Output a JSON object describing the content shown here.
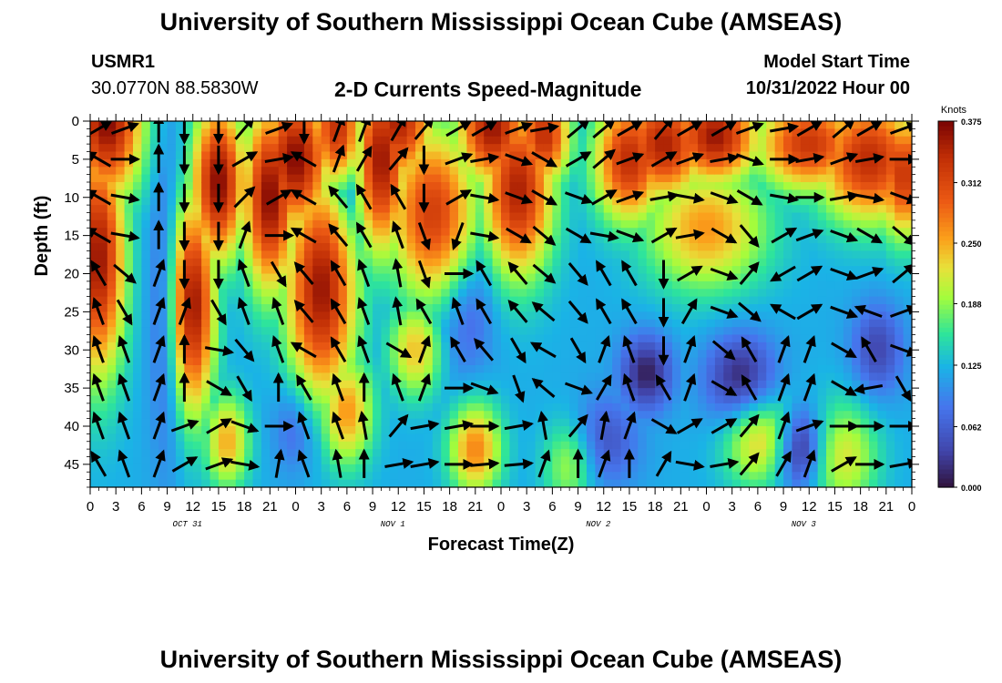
{
  "header": {
    "title": "University of Southern Mississippi Ocean Cube (AMSEAS)",
    "station_id": "USMR1",
    "station_coords": "30.0770N  88.5830W",
    "plot_title": "2-D Currents Speed-Magnitude",
    "model_start_label": "Model Start Time",
    "model_start_value": "10/31/2022 Hour 00"
  },
  "footer": {
    "title": "University of Southern Mississippi Ocean Cube (AMSEAS)"
  },
  "chart_data": {
    "type": "heatmap",
    "title": "2-D Currents Speed-Magnitude",
    "xlabel": "Forecast Time(Z)",
    "ylabel": "Depth (ft)",
    "xlim": [
      0,
      96
    ],
    "ylim": [
      0,
      48
    ],
    "y_inverted": true,
    "x_ticks": [
      0,
      3,
      6,
      9,
      12,
      15,
      18,
      21,
      24,
      27,
      30,
      33,
      36,
      39,
      42,
      45,
      48,
      51,
      54,
      57,
      60,
      63,
      66,
      69,
      72,
      75,
      78,
      81,
      84,
      87,
      90,
      93,
      96
    ],
    "x_tick_labels": [
      "0",
      "3",
      "6",
      "9",
      "12",
      "15",
      "18",
      "21",
      "0",
      "3",
      "6",
      "9",
      "12",
      "15",
      "18",
      "21",
      "0",
      "3",
      "6",
      "9",
      "12",
      "15",
      "18",
      "21",
      "0",
      "3",
      "6",
      "9",
      "12",
      "15",
      "18",
      "21",
      "0"
    ],
    "y_ticks": [
      0,
      5,
      10,
      15,
      20,
      25,
      30,
      35,
      40,
      45
    ],
    "y_tick_labels": [
      "0",
      "5",
      "10",
      "15",
      "20",
      "25",
      "30",
      "35",
      "40",
      "45"
    ],
    "day_labels": [
      {
        "hour": 12,
        "label": "OCT 31"
      },
      {
        "hour": 36,
        "label": "NOV 1"
      },
      {
        "hour": 60,
        "label": "NOV 2"
      },
      {
        "hour": 84,
        "label": "NOV 3"
      }
    ],
    "colorbar": {
      "unit": "Knots",
      "range": [
        0.0,
        0.375
      ],
      "tick_values": [
        0.375,
        0.312,
        0.25,
        0.188,
        0.125,
        0.062,
        0.0
      ],
      "tick_labels": [
        "0.375",
        "0.312",
        "0.250",
        "0.188",
        "0.125",
        "0.062",
        "0.000"
      ]
    },
    "speed_features": [
      {
        "t": 1,
        "d": 18,
        "speed": 0.36,
        "sx": 3,
        "sd": 15
      },
      {
        "t": 2,
        "d": 0,
        "speed": 0.37,
        "sx": 4,
        "sd": 10
      },
      {
        "t": 12,
        "d": 24,
        "speed": 0.36,
        "sx": 2.5,
        "sd": 14
      },
      {
        "t": 15,
        "d": 8,
        "speed": 0.37,
        "sx": 3,
        "sd": 10
      },
      {
        "t": 16,
        "d": 42,
        "speed": 0.25,
        "sx": 2.5,
        "sd": 6
      },
      {
        "t": 21,
        "d": 10,
        "speed": 0.37,
        "sx": 3,
        "sd": 12
      },
      {
        "t": 24,
        "d": 5,
        "speed": 0.37,
        "sx": 4,
        "sd": 9
      },
      {
        "t": 27,
        "d": 22,
        "speed": 0.36,
        "sx": 4,
        "sd": 14
      },
      {
        "t": 29,
        "d": 1,
        "speed": 0.35,
        "sx": 3,
        "sd": 8
      },
      {
        "t": 30,
        "d": 38,
        "speed": 0.26,
        "sx": 3,
        "sd": 7
      },
      {
        "t": 34,
        "d": 5,
        "speed": 0.36,
        "sx": 3,
        "sd": 12
      },
      {
        "t": 36,
        "d": 0,
        "speed": 0.35,
        "sx": 4,
        "sd": 8
      },
      {
        "t": 38,
        "d": 30,
        "speed": 0.24,
        "sx": 3,
        "sd": 6
      },
      {
        "t": 40,
        "d": 12,
        "speed": 0.32,
        "sx": 5,
        "sd": 11
      },
      {
        "t": 45,
        "d": 43,
        "speed": 0.27,
        "sx": 3,
        "sd": 6
      },
      {
        "t": 47,
        "d": 1,
        "speed": 0.36,
        "sx": 4,
        "sd": 7
      },
      {
        "t": 50,
        "d": 9,
        "speed": 0.35,
        "sx": 4,
        "sd": 11
      },
      {
        "t": 53,
        "d": 2,
        "speed": 0.34,
        "sx": 3,
        "sd": 6
      },
      {
        "t": 56,
        "d": 45,
        "speed": 0.2,
        "sx": 3,
        "sd": 6
      },
      {
        "t": 63,
        "d": 5,
        "speed": 0.34,
        "sx": 4,
        "sd": 8
      },
      {
        "t": 67,
        "d": 3,
        "speed": 0.35,
        "sx": 5,
        "sd": 7
      },
      {
        "t": 72,
        "d": 14,
        "speed": 0.26,
        "sx": 7,
        "sd": 8
      },
      {
        "t": 73,
        "d": 2,
        "speed": 0.36,
        "sx": 5,
        "sd": 6
      },
      {
        "t": 78,
        "d": 42,
        "speed": 0.23,
        "sx": 4,
        "sd": 6
      },
      {
        "t": 84,
        "d": 3,
        "speed": 0.33,
        "sx": 6,
        "sd": 6
      },
      {
        "t": 91,
        "d": 5,
        "speed": 0.34,
        "sx": 6,
        "sd": 8
      },
      {
        "t": 95,
        "d": 7,
        "speed": 0.33,
        "sx": 3,
        "sd": 8
      },
      {
        "t": 88,
        "d": 44,
        "speed": 0.22,
        "sx": 4,
        "sd": 7
      }
    ],
    "low_speed_features": [
      {
        "t": 9,
        "d": 25,
        "speed": 0.06,
        "sx": 2,
        "sd": 20
      },
      {
        "t": 24,
        "d": 40,
        "speed": 0.06,
        "sx": 2.5,
        "sd": 6
      },
      {
        "t": 30,
        "d": 5,
        "speed": 0.06,
        "sx": 2,
        "sd": 10
      },
      {
        "t": 44,
        "d": 25,
        "speed": 0.06,
        "sx": 3,
        "sd": 8
      },
      {
        "t": 60,
        "d": 42,
        "speed": 0.05,
        "sx": 4,
        "sd": 6
      },
      {
        "t": 65,
        "d": 33,
        "speed": 0.01,
        "sx": 3,
        "sd": 5
      },
      {
        "t": 76,
        "d": 34,
        "speed": 0.01,
        "sx": 4,
        "sd": 6
      },
      {
        "t": 83,
        "d": 43,
        "speed": 0.01,
        "sx": 3,
        "sd": 5
      },
      {
        "t": 92,
        "d": 30,
        "speed": 0.04,
        "sx": 3,
        "sd": 6
      }
    ],
    "background_speed": 0.12,
    "vectors": {
      "times": [
        1,
        4,
        8,
        11,
        15,
        18,
        22,
        25,
        29,
        32,
        36,
        39,
        43,
        46,
        50,
        53,
        57,
        60,
        63,
        67,
        70,
        74,
        77,
        81,
        84,
        88,
        91,
        95
      ],
      "depths": [
        1,
        5,
        10,
        15,
        20,
        25,
        30,
        35,
        40,
        45
      ],
      "directions_deg": [
        [
          60,
          70,
          0,
          180,
          180,
          40,
          70,
          180,
          20,
          20,
          30,
          40,
          60,
          60,
          70,
          80,
          50,
          50,
          60,
          40,
          60,
          60,
          70,
          80,
          60,
          50,
          60,
          70
        ],
        [
          300,
          90,
          0,
          180,
          180,
          60,
          80,
          300,
          20,
          30,
          40,
          180,
          70,
          80,
          110,
          120,
          60,
          50,
          70,
          60,
          70,
          80,
          110,
          90,
          80,
          70,
          80,
          90
        ],
        [
          300,
          100,
          0,
          180,
          180,
          45,
          60,
          300,
          320,
          330,
          330,
          180,
          60,
          100,
          110,
          120,
          110,
          60,
          70,
          80,
          100,
          110,
          120,
          100,
          90,
          80,
          100,
          110
        ],
        [
          300,
          100,
          0,
          180,
          180,
          20,
          90,
          300,
          320,
          330,
          340,
          160,
          200,
          100,
          120,
          130,
          120,
          100,
          110,
          60,
          80,
          120,
          140,
          60,
          70,
          110,
          120,
          130
        ],
        [
          330,
          130,
          20,
          180,
          180,
          340,
          150,
          320,
          330,
          340,
          350,
          160,
          90,
          330,
          320,
          130,
          140,
          330,
          330,
          180,
          60,
          110,
          40,
          240,
          60,
          110,
          70,
          50
        ],
        [
          340,
          150,
          20,
          20,
          150,
          340,
          340,
          320,
          330,
          340,
          350,
          330,
          340,
          330,
          320,
          310,
          140,
          330,
          330,
          180,
          30,
          110,
          130,
          300,
          60,
          110,
          290,
          70
        ],
        [
          340,
          340,
          20,
          0,
          100,
          140,
          340,
          300,
          330,
          340,
          120,
          20,
          330,
          320,
          150,
          300,
          150,
          20,
          340,
          180,
          20,
          130,
          330,
          20,
          20,
          120,
          330,
          110
        ],
        [
          340,
          340,
          20,
          0,
          120,
          150,
          0,
          330,
          340,
          0,
          340,
          20,
          90,
          110,
          160,
          310,
          110,
          30,
          340,
          330,
          20,
          120,
          330,
          20,
          20,
          120,
          260,
          150
        ],
        [
          340,
          340,
          20,
          70,
          60,
          110,
          90,
          340,
          340,
          350,
          40,
          80,
          80,
          90,
          80,
          350,
          40,
          10,
          20,
          120,
          60,
          60,
          40,
          20,
          70,
          90,
          90,
          90
        ],
        [
          330,
          340,
          20,
          60,
          70,
          100,
          10,
          340,
          350,
          0,
          80,
          80,
          90,
          85,
          85,
          20,
          0,
          20,
          0,
          30,
          100,
          80,
          40,
          30,
          20,
          60,
          90,
          80
        ]
      ]
    }
  }
}
